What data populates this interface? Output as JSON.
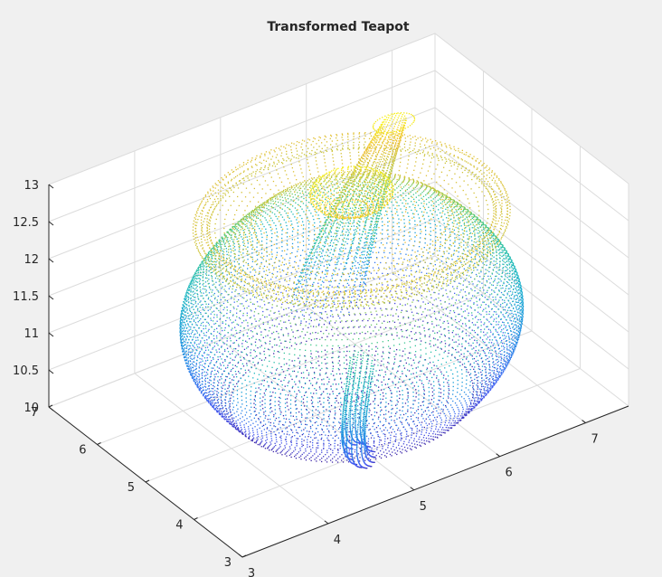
{
  "chart_data": {
    "type": "scatter",
    "title": "Transformed Teapot",
    "xlabel": "",
    "ylabel": "",
    "zlabel": "",
    "xlim": [
      3,
      7.5
    ],
    "ylim": [
      3,
      7
    ],
    "zlim": [
      10,
      13
    ],
    "xticks": [
      3,
      4,
      5,
      6,
      7
    ],
    "yticks": [
      3,
      4,
      5,
      6,
      7
    ],
    "zticks": [
      10,
      10.5,
      11,
      11.5,
      12,
      12.5,
      13
    ],
    "xtick_labels": [
      "3",
      "4",
      "5",
      "6",
      "7"
    ],
    "ytick_labels": [
      "3",
      "4",
      "5",
      "6",
      "7"
    ],
    "ztick_labels": [
      "10",
      "10.5",
      "11",
      "11.5",
      "12",
      "12.5",
      "13"
    ],
    "grid": true,
    "colormap": "parula (color by z)",
    "background": "#f0f0f0",
    "axes_color": "#ffffff",
    "point_cloud": {
      "description_points": "dense surface point cloud of a teapot",
      "body_center": [
        5.4,
        5.0
      ],
      "body_z_range": [
        10.05,
        12.45
      ],
      "lid_knob_top_z": 12.95,
      "spout_tip": [
        6.4,
        5.9,
        12.85
      ],
      "handle_range_z": [
        10.3,
        11.6
      ]
    }
  }
}
